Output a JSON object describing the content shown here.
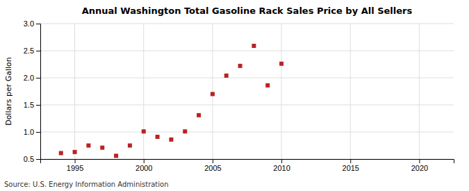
{
  "chart_data": {
    "type": "scatter",
    "title": "Annual Washington Total Gasoline Rack Sales Price by All Sellers",
    "ylabel": "Dollars per Gallon",
    "source": "Source: U.S. Energy Information Administration",
    "x": [
      1994,
      1995,
      1996,
      1997,
      1998,
      1999,
      2000,
      2001,
      2002,
      2003,
      2004,
      2005,
      2006,
      2007,
      2008,
      2009,
      2010
    ],
    "values": [
      0.61,
      0.63,
      0.75,
      0.71,
      0.56,
      0.75,
      1.01,
      0.91,
      0.86,
      1.01,
      1.31,
      1.7,
      2.04,
      2.22,
      2.59,
      1.86,
      2.26
    ],
    "xlim": [
      1992.5,
      2022.5
    ],
    "ylim": [
      0.5,
      3.0
    ],
    "xticks": [
      1995,
      2000,
      2005,
      2010,
      2015,
      2020
    ],
    "yticks": [
      0.5,
      {
        "value": 1.0,
        "label": "1.0"
      },
      1.5,
      {
        "value": 2.0,
        "label": "2.0"
      },
      2.5,
      {
        "value": 3.0,
        "label": "3.0"
      }
    ],
    "color": "#bb2222",
    "marker": "square",
    "grid": true
  }
}
